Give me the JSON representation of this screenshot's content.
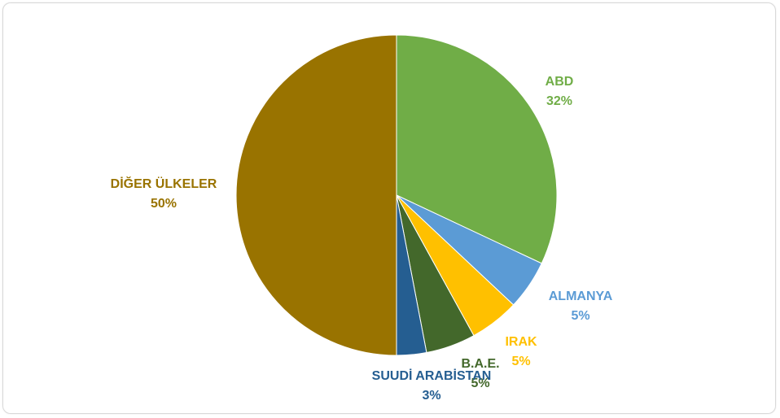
{
  "chart_data": {
    "type": "pie",
    "title": "",
    "start_angle_deg": 0,
    "direction": "clockwise",
    "slices": [
      {
        "label": "ABD",
        "value": 32,
        "value_label": "32%",
        "color": "#70ad47"
      },
      {
        "label": "ALMANYA",
        "value": 5,
        "value_label": "5%",
        "color": "#5b9bd5"
      },
      {
        "label": "IRAK",
        "value": 5,
        "value_label": "5%",
        "color": "#ffc000"
      },
      {
        "label": "B.A.E.",
        "value": 5,
        "value_label": "5%",
        "color": "#43682b"
      },
      {
        "label": "SUUDİ ARABİSTAN",
        "value": 3,
        "value_label": "3%",
        "color": "#255e91"
      },
      {
        "label": "DİĞER ÜLKELER",
        "value": 50,
        "value_label": "50%",
        "color": "#997300"
      }
    ],
    "legend": "none"
  }
}
